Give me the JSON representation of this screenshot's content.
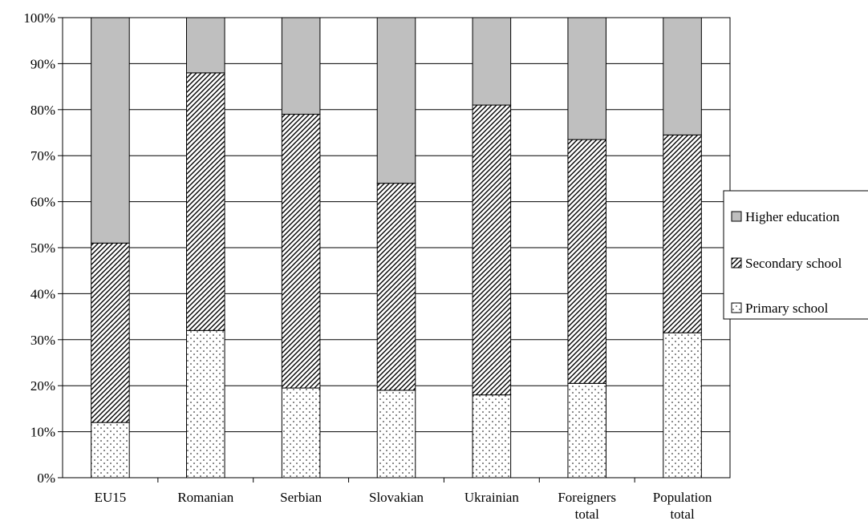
{
  "chart_data": {
    "type": "bar",
    "stacked": true,
    "title": "",
    "xlabel": "",
    "ylabel": "",
    "ylim": [
      0,
      100
    ],
    "y_ticks": [
      "0%",
      "10%",
      "20%",
      "30%",
      "40%",
      "50%",
      "60%",
      "70%",
      "80%",
      "90%",
      "100%"
    ],
    "grid": true,
    "legend_position": "right",
    "categories": [
      [
        "EU15"
      ],
      [
        "Romanian"
      ],
      [
        "Serbian"
      ],
      [
        "Slovakian"
      ],
      [
        "Ukrainian"
      ],
      [
        "Foreigners",
        "total"
      ],
      [
        "Population",
        "total"
      ]
    ],
    "series": [
      {
        "name": "Primary school",
        "pattern": "dots",
        "color": "#ffffff",
        "values": [
          12,
          32,
          19.5,
          19,
          18,
          20.5,
          31.5
        ]
      },
      {
        "name": "Secondary school",
        "pattern": "diagonal-hatch",
        "color": "#ffffff",
        "values": [
          39,
          56,
          59.5,
          45,
          63,
          53,
          43
        ]
      },
      {
        "name": "Higher education",
        "pattern": "solid",
        "color": "#bfbfbf",
        "values": [
          49,
          12,
          21,
          36,
          19,
          26.5,
          25.5
        ]
      }
    ],
    "legend_order": [
      "Higher education",
      "Secondary school",
      "Primary school"
    ]
  }
}
